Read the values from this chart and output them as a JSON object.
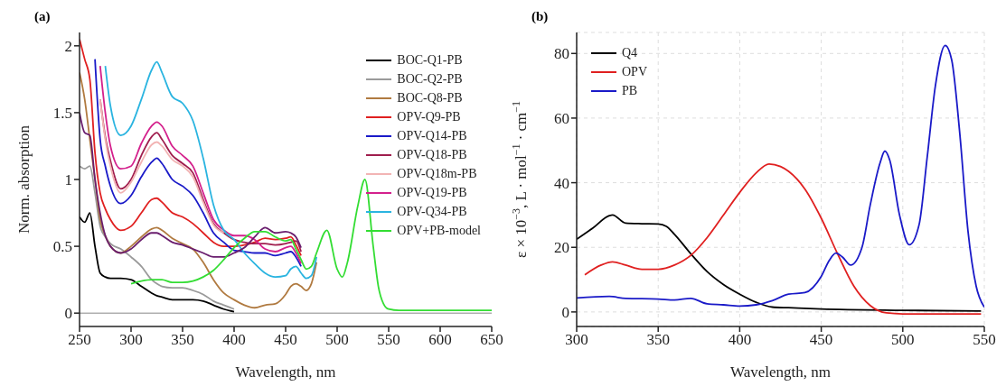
{
  "chart_data": [
    {
      "type": "line",
      "title": "(a)",
      "xlabel": "Wavelength, nm",
      "ylabel": "Norm. absorption",
      "xlim": [
        250,
        650
      ],
      "xticks": [
        250,
        300,
        350,
        400,
        450,
        500,
        550,
        600,
        650
      ],
      "ylim": [
        -0.1,
        2.1
      ],
      "yticks": [
        0,
        0.5,
        1,
        1.5,
        2
      ],
      "grid": false,
      "legend": "top right",
      "ref_lines": [
        {
          "axis": "y",
          "value": 0,
          "color": "#888888"
        }
      ],
      "x": [
        250,
        255,
        260,
        265,
        270,
        275,
        280,
        290,
        300,
        310,
        320,
        325,
        330,
        340,
        350,
        360,
        370,
        380,
        390,
        400,
        410,
        420,
        430,
        440,
        450,
        455,
        460,
        465,
        470,
        475,
        480,
        490,
        500,
        505,
        510,
        520,
        527,
        535,
        540,
        545,
        550,
        560,
        600,
        650
      ],
      "series": [
        {
          "name": "BOC-Q1-PB",
          "color": "#000000",
          "values": [
            0.72,
            0.68,
            0.75,
            0.5,
            0.3,
            0.27,
            0.26,
            0.26,
            0.25,
            0.2,
            0.15,
            0.13,
            0.12,
            0.1,
            0.1,
            0.1,
            0.09,
            0.06,
            0.03,
            0.01,
            null,
            null,
            null,
            null,
            null,
            null,
            null,
            null,
            null,
            null,
            null,
            null,
            null,
            null,
            null,
            null,
            null,
            null,
            null,
            null,
            null,
            null,
            null,
            null
          ]
        },
        {
          "name": "BOC-Q2-PB",
          "color": "#9a9a9a",
          "values": [
            1.1,
            1.08,
            1.1,
            0.9,
            0.65,
            0.57,
            0.52,
            0.48,
            0.42,
            0.35,
            0.25,
            0.22,
            0.2,
            0.19,
            0.19,
            0.17,
            0.14,
            0.09,
            0.06,
            0.03,
            null,
            null,
            null,
            null,
            null,
            null,
            null,
            null,
            null,
            null,
            null,
            null,
            null,
            null,
            null,
            null,
            null,
            null,
            null,
            null,
            null,
            null,
            null,
            null
          ]
        },
        {
          "name": "BOC-Q8-PB",
          "color": "#b07a40",
          "values": [
            1.8,
            1.6,
            1.3,
            1.0,
            0.7,
            0.58,
            0.5,
            0.45,
            0.5,
            0.57,
            0.63,
            0.64,
            0.62,
            0.56,
            0.52,
            0.48,
            0.38,
            0.25,
            0.15,
            0.1,
            0.06,
            0.04,
            0.06,
            0.07,
            0.14,
            0.2,
            0.22,
            0.2,
            0.17,
            0.22,
            0.38,
            null,
            null,
            null,
            null,
            null,
            null,
            null,
            null,
            null,
            null,
            null,
            null,
            null
          ]
        },
        {
          "name": "OPV-Q9-PB",
          "color": "#e02020",
          "values": [
            2.05,
            1.9,
            1.75,
            1.2,
            0.9,
            0.78,
            0.7,
            0.62,
            0.65,
            0.75,
            0.85,
            0.86,
            0.83,
            0.75,
            0.72,
            0.67,
            0.6,
            0.53,
            0.5,
            0.5,
            0.51,
            0.53,
            0.56,
            0.55,
            0.56,
            0.57,
            0.51,
            0.43,
            null,
            null,
            null,
            null,
            null,
            null,
            null,
            null,
            null,
            null,
            null,
            null,
            null,
            null,
            null,
            null
          ]
        },
        {
          "name": "OPV-Q14-PB",
          "color": "#1a1ac8",
          "values": [
            null,
            null,
            null,
            1.9,
            1.3,
            1.1,
            0.95,
            0.82,
            0.88,
            1.02,
            1.13,
            1.16,
            1.12,
            1.0,
            0.95,
            0.88,
            0.75,
            0.6,
            0.53,
            0.47,
            0.46,
            0.45,
            0.45,
            0.43,
            0.45,
            0.46,
            0.42,
            0.35,
            null,
            null,
            null,
            null,
            null,
            null,
            null,
            null,
            null,
            null,
            null,
            null,
            null,
            null,
            null,
            null
          ]
        },
        {
          "name": "OPV-Q18-PB",
          "color": "#a01e4e",
          "values": [
            null,
            null,
            null,
            null,
            1.6,
            1.32,
            1.14,
            0.93,
            1.0,
            1.18,
            1.32,
            1.35,
            1.3,
            1.18,
            1.12,
            1.05,
            0.85,
            0.67,
            0.6,
            0.55,
            0.53,
            0.52,
            0.52,
            0.51,
            0.52,
            0.53,
            0.54,
            0.46,
            null,
            null,
            null,
            null,
            null,
            null,
            null,
            null,
            null,
            null,
            null,
            null,
            null,
            null,
            null,
            null
          ]
        },
        {
          "name": "OPV-Q18m-PB",
          "color": "#f2b4b4",
          "values": [
            null,
            null,
            null,
            null,
            1.6,
            1.3,
            1.1,
            0.9,
            0.98,
            1.13,
            1.26,
            1.28,
            1.25,
            1.15,
            1.1,
            1.02,
            0.83,
            0.66,
            0.6,
            null,
            null,
            null,
            null,
            null,
            null,
            null,
            null,
            null,
            null,
            null,
            null,
            null,
            null,
            null,
            null,
            null,
            null,
            null,
            null,
            null,
            null,
            null,
            null,
            null
          ]
        },
        {
          "name": "OPV-Q19-PB",
          "color": "#d4208c",
          "values": [
            null,
            null,
            null,
            null,
            1.85,
            1.5,
            1.25,
            1.08,
            1.1,
            1.27,
            1.4,
            1.43,
            1.4,
            1.25,
            1.18,
            1.1,
            0.9,
            0.7,
            0.62,
            0.58,
            0.58,
            0.55,
            0.48,
            0.46,
            0.49,
            0.5,
            0.45,
            0.37,
            null,
            null,
            null,
            null,
            null,
            null,
            null,
            null,
            null,
            null,
            null,
            null,
            null,
            null,
            null,
            null
          ]
        },
        {
          "name": "OPV-Q34-PB",
          "color": "#2ab4e0",
          "values": [
            null,
            null,
            null,
            null,
            null,
            1.85,
            1.55,
            1.33,
            1.4,
            1.6,
            1.82,
            1.88,
            1.8,
            1.62,
            1.57,
            1.44,
            1.16,
            0.81,
            0.62,
            0.55,
            0.45,
            0.37,
            0.3,
            0.27,
            0.28,
            0.33,
            0.35,
            0.3,
            0.26,
            0.28,
            0.42,
            null,
            null,
            null,
            null,
            null,
            null,
            null,
            null,
            null,
            null,
            null,
            null,
            null
          ]
        },
        {
          "color": "#6a1e6e",
          "values": [
            1.5,
            1.35,
            1.33,
            1.0,
            0.75,
            0.58,
            0.5,
            0.45,
            0.48,
            0.55,
            0.6,
            0.6,
            0.58,
            0.53,
            0.51,
            0.48,
            0.45,
            0.42,
            0.42,
            0.45,
            0.49,
            0.57,
            0.64,
            0.6,
            0.61,
            0.6,
            0.57,
            0.49,
            null,
            null,
            null,
            null,
            null,
            null,
            null,
            null,
            null,
            null,
            null,
            null,
            null,
            null,
            null,
            null
          ]
        },
        {
          "name": "OPV+PB-model",
          "color": "#33dd33",
          "values": [
            null,
            null,
            null,
            null,
            null,
            null,
            null,
            null,
            0.22,
            0.24,
            0.25,
            0.25,
            0.25,
            0.23,
            0.23,
            0.24,
            0.27,
            0.32,
            0.4,
            0.49,
            0.56,
            0.61,
            0.61,
            0.57,
            0.54,
            0.55,
            0.48,
            0.4,
            0.33,
            0.35,
            0.45,
            0.62,
            0.33,
            0.27,
            0.38,
            0.8,
            1.0,
            0.5,
            0.2,
            0.07,
            0.03,
            0.02,
            0.02,
            0.02
          ]
        }
      ]
    },
    {
      "type": "line",
      "title": "(b)",
      "xlabel": "Wavelength, nm",
      "ylabel": "ε × 10$^{−3}$, L · mol$^{−1}$ · cm$^{−1}$",
      "xlim": [
        300,
        550
      ],
      "xticks": [
        300,
        350,
        400,
        450,
        500,
        550
      ],
      "ylim": [
        -4.5,
        86.5
      ],
      "yticks": [
        0,
        20,
        40,
        60,
        80
      ],
      "grid": true,
      "legend": "top left",
      "series": [
        {
          "name": "Q4",
          "color": "#000000",
          "x": [
            300,
            310,
            320,
            322,
            330,
            340,
            350,
            355,
            360,
            370,
            380,
            390,
            400,
            410,
            420,
            430,
            450,
            500,
            548
          ],
          "values": [
            22.5,
            26,
            29.8,
            30,
            27.5,
            27.3,
            27.2,
            26.5,
            24,
            18,
            12.5,
            8.5,
            5.5,
            3,
            1.5,
            1.3,
            0.9,
            0.5,
            0.3
          ]
        },
        {
          "name": "OPV",
          "color": "#e02020",
          "x": [
            305,
            315,
            322,
            330,
            340,
            350,
            360,
            370,
            380,
            390,
            400,
            410,
            418,
            425,
            430,
            440,
            450,
            460,
            470,
            480,
            490,
            500,
            548
          ],
          "values": [
            11.5,
            14.5,
            15.5,
            14.5,
            13.2,
            13.2,
            14.5,
            17.5,
            23,
            30,
            37,
            43,
            45.8,
            45,
            43.5,
            38,
            29,
            18,
            8,
            2,
            -0.3,
            -0.6,
            -0.6
          ]
        },
        {
          "name": "PB",
          "color": "#1a1ac8",
          "x": [
            300,
            320,
            330,
            350,
            360,
            370,
            380,
            390,
            400,
            410,
            420,
            430,
            440,
            450,
            455,
            459,
            463,
            468,
            475,
            480,
            486,
            489,
            492,
            498,
            504,
            510,
            515,
            520,
            526,
            530,
            535,
            540,
            545,
            550
          ],
          "values": [
            4.3,
            4.8,
            4.2,
            4,
            3.7,
            4.2,
            2.5,
            2.2,
            1.8,
            2.2,
            3.5,
            5.5,
            6,
            11,
            16,
            18.2,
            17,
            14.5,
            20,
            33,
            46,
            49.8,
            47,
            30,
            20.8,
            27,
            48,
            70,
            82.5,
            78,
            55,
            25,
            8,
            1.5
          ]
        }
      ]
    }
  ]
}
